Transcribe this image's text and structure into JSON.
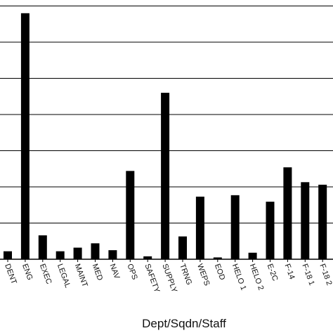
{
  "chart_data": {
    "type": "bar",
    "categories": [
      "DENT",
      "ENG",
      "EXEC",
      "LEGAL",
      "MAINT",
      "MED",
      "NAV",
      "OPS",
      "SAFETY",
      "SUPPLY",
      "TRNG",
      "WEPS",
      "EOD",
      "HELO 1",
      "HELO 2",
      "E-2C",
      "F-14",
      "F-18 1",
      "F-18 2"
    ],
    "values": [
      0.22,
      6.8,
      0.66,
      0.22,
      0.32,
      0.44,
      0.25,
      2.44,
      0.08,
      4.6,
      0.63,
      1.73,
      0.05,
      1.77,
      0.18,
      1.59,
      2.54,
      2.13,
      2.06
    ],
    "title": "",
    "xlabel": "Dept/Sqdn/Staff",
    "ylabel": "",
    "ylim": [
      0,
      7
    ],
    "grid": true,
    "bar_color": "#000000",
    "grid_color": "#000000"
  }
}
